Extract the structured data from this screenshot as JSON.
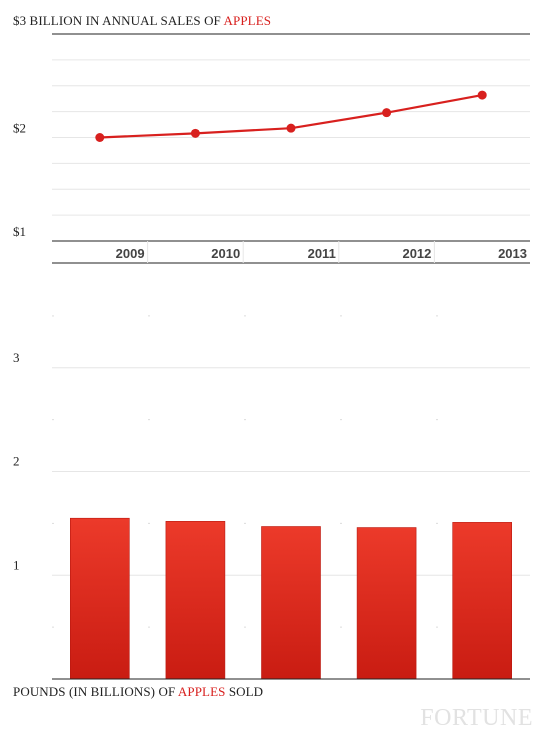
{
  "line_chart_title": {
    "prefix": "$3 BILLION IN ANNUAL SALES OF ",
    "highlight": "APPLES",
    "suffix": ""
  },
  "bar_chart_title": {
    "prefix": "POUNDS (IN BILLIONS) OF ",
    "highlight": "APPLES",
    "suffix": " SOLD"
  },
  "watermark": "FORTUNE",
  "colors": {
    "accent": "#d8201e",
    "grid": "#e6e6e6",
    "axis": "#222222"
  },
  "chart_data": [
    {
      "type": "line",
      "title": "$3 BILLION IN ANNUAL SALES OF APPLES",
      "categories": [
        "2009",
        "2010",
        "2011",
        "2012",
        "2013"
      ],
      "values": [
        2.0,
        2.04,
        2.09,
        2.24,
        2.41
      ],
      "ylim": [
        1,
        3
      ],
      "ytick_labels": [
        {
          "value": 3,
          "label": "$3"
        },
        {
          "value": 2,
          "label": "$2"
        },
        {
          "value": 1,
          "label": "$1"
        }
      ],
      "grid": true
    },
    {
      "type": "bar",
      "title": "POUNDS (IN BILLIONS) OF APPLES SOLD",
      "categories": [
        "2009",
        "2010",
        "2011",
        "2012",
        "2013"
      ],
      "values": [
        1.55,
        1.52,
        1.47,
        1.46,
        1.51
      ],
      "ylim": [
        0,
        3.75
      ],
      "ytick_labels": [
        {
          "value": 3,
          "label": "3"
        },
        {
          "value": 2,
          "label": "2"
        },
        {
          "value": 1,
          "label": "1"
        }
      ],
      "grid": true
    }
  ]
}
